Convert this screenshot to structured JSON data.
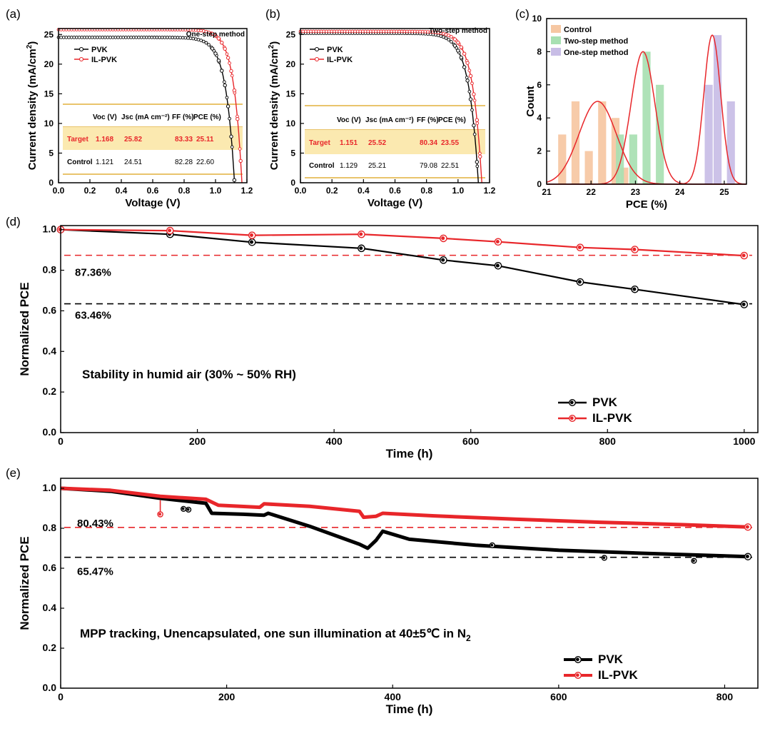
{
  "colors": {
    "black": "#000000",
    "red": "#e8262a",
    "table_line": "#e2b13c",
    "table_band": "#fbe9b0",
    "control_bar": "#f6c7a2",
    "two_step_bar": "#a8e0b2",
    "one_step_bar": "#c8bde6",
    "gauss_line": "#e8262a"
  },
  "chart_data": [
    {
      "id": "a",
      "panel_label": "(a)",
      "type": "line",
      "xlabel": "Voltage (V)",
      "ylabel_main": "Current density (mA/cm",
      "ylabel_sup": "2",
      "ylabel_tail": ")",
      "xlim": [
        0.0,
        1.2
      ],
      "ylim": [
        0,
        26
      ],
      "xticks": [
        "0.0",
        "0.2",
        "0.4",
        "0.6",
        "0.8",
        "1.0",
        "1.2"
      ],
      "yticks": [
        "0",
        "5",
        "10",
        "15",
        "20",
        "25"
      ],
      "annotation": "One-step method",
      "legend": [
        "PVK",
        "IL-PVK"
      ],
      "series": [
        {
          "name": "PVK",
          "jsc": 24.51,
          "voc": 1.121,
          "knee": 0.055
        },
        {
          "name": "IL-PVK",
          "jsc": 25.82,
          "voc": 1.168,
          "knee": 0.052
        }
      ],
      "table": {
        "headers": [
          "Voc (V)",
          "Jsc (mA cm⁻²)",
          "FF (%)",
          "PCE (%)"
        ],
        "rows": [
          {
            "label": "Target",
            "values": [
              "1.168",
              "25.82",
              "83.33",
              "25.11"
            ]
          },
          {
            "label": "Control",
            "values": [
              "1.121",
              "24.51",
              "82.28",
              "22.60"
            ]
          }
        ]
      }
    },
    {
      "id": "b",
      "panel_label": "(b)",
      "type": "line",
      "xlabel": "Voltage (V)",
      "ylabel_main": "Current density (mA/cm",
      "ylabel_sup": "2",
      "ylabel_tail": ")",
      "xlim": [
        0.0,
        1.2
      ],
      "ylim": [
        0,
        26
      ],
      "xticks": [
        "0.0",
        "0.2",
        "0.4",
        "0.6",
        "0.8",
        "1.0",
        "1.2"
      ],
      "yticks": [
        "0",
        "5",
        "10",
        "15",
        "20",
        "25"
      ],
      "annotation": "Two-step method",
      "legend": [
        "PVK",
        "IL-PVK"
      ],
      "series": [
        {
          "name": "PVK",
          "jsc": 25.21,
          "voc": 1.129,
          "knee": 0.06
        },
        {
          "name": "IL-PVK",
          "jsc": 25.52,
          "voc": 1.151,
          "knee": 0.058
        }
      ],
      "table": {
        "headers": [
          "Voc (V)",
          "Jsc (mA cm⁻²)",
          "FF (%)",
          "PCE (%)"
        ],
        "rows": [
          {
            "label": "Target",
            "values": [
              "1.151",
              "25.52",
              "80.34",
              "23.55"
            ]
          },
          {
            "label": "Control",
            "values": [
              "1.129",
              "25.21",
              "79.08",
              "22.51"
            ]
          }
        ]
      }
    },
    {
      "id": "c",
      "panel_label": "(c)",
      "type": "bar",
      "xlabel": "PCE (%)",
      "ylabel": "Count",
      "xlim": [
        21,
        25.5
      ],
      "ylim": [
        0,
        10
      ],
      "xticks": [
        "21",
        "22",
        "23",
        "24",
        "25"
      ],
      "yticks": [
        "0",
        "2",
        "4",
        "6",
        "8",
        "10"
      ],
      "legend": [
        "Control",
        "Two-step method",
        "One-step method"
      ],
      "bin_width": 0.18,
      "series": [
        {
          "name": "Control",
          "centers": [
            21.35,
            21.65,
            21.95,
            22.25,
            22.55,
            22.75
          ],
          "counts": [
            3,
            5,
            2,
            5,
            4,
            1
          ],
          "gauss": {
            "mu": 22.15,
            "sigma": 0.42,
            "peak": 5
          }
        },
        {
          "name": "Two-step method",
          "centers": [
            22.65,
            22.95,
            23.25,
            23.55
          ],
          "counts": [
            3,
            3,
            8,
            6
          ],
          "gauss": {
            "mu": 23.17,
            "sigma": 0.27,
            "peak": 8
          }
        },
        {
          "name": "One-step method",
          "centers": [
            24.65,
            24.85,
            25.15
          ],
          "counts": [
            6,
            9,
            5
          ],
          "gauss": {
            "mu": 24.73,
            "sigma": 0.19,
            "peak": 9
          }
        }
      ]
    },
    {
      "id": "d",
      "panel_label": "(d)",
      "type": "line",
      "xlabel": "Time (h)",
      "ylabel": "Normalized PCE",
      "xlim": [
        0,
        1020
      ],
      "ylim": [
        0,
        1.02
      ],
      "xticks": [
        "0",
        "200",
        "400",
        "600",
        "800",
        "1000"
      ],
      "yticks": [
        "0.0",
        "0.2",
        "0.4",
        "0.6",
        "0.8",
        "1.0"
      ],
      "annotation": "Stability in humid air  (30% ~ 50% RH)",
      "ref_red": {
        "value": 0.8736,
        "label": "87.36%"
      },
      "ref_black": {
        "value": 0.6346,
        "label": "63.46%"
      },
      "legend": [
        "PVK",
        "IL-PVK"
      ],
      "series": [
        {
          "name": "PVK",
          "x": [
            0,
            160,
            280,
            440,
            560,
            640,
            760,
            840,
            1000
          ],
          "y": [
            1.0,
            0.977,
            0.938,
            0.908,
            0.85,
            0.822,
            0.742,
            0.706,
            0.631
          ]
        },
        {
          "name": "IL-PVK",
          "x": [
            0,
            160,
            280,
            440,
            560,
            640,
            760,
            840,
            1000
          ],
          "y": [
            1.0,
            0.995,
            0.972,
            0.977,
            0.957,
            0.94,
            0.912,
            0.902,
            0.872
          ]
        }
      ]
    },
    {
      "id": "e",
      "panel_label": "(e)",
      "type": "line",
      "xlabel": "Time (h)",
      "ylabel": "Normalized PCE",
      "xlim": [
        0,
        840
      ],
      "ylim": [
        0,
        1.05
      ],
      "xticks": [
        "0",
        "200",
        "400",
        "600",
        "800"
      ],
      "yticks": [
        "0.0",
        "0.2",
        "0.4",
        "0.6",
        "0.8",
        "1.0"
      ],
      "annotation_main": "MPP tracking, Unencapsulated, one sun illumination at 40±5℃ in N",
      "annotation_sub": "2",
      "ref_red": {
        "value": 0.8043,
        "label": "80.43%"
      },
      "ref_black": {
        "value": 0.6547,
        "label": "65.47%"
      },
      "legend": [
        "PVK",
        "IL-PVK"
      ],
      "series": [
        {
          "name": "PVK",
          "x": [
            0,
            60,
            120,
            175,
            182,
            220,
            245,
            250,
            300,
            340,
            360,
            370,
            380,
            388,
            420,
            500,
            600,
            700,
            828
          ],
          "y": [
            1.0,
            0.985,
            0.95,
            0.925,
            0.875,
            0.87,
            0.865,
            0.875,
            0.81,
            0.75,
            0.72,
            0.7,
            0.74,
            0.785,
            0.745,
            0.715,
            0.69,
            0.675,
            0.658
          ]
        },
        {
          "name": "IL-PVK",
          "x": [
            0,
            60,
            120,
            175,
            190,
            240,
            245,
            300,
            360,
            365,
            380,
            388,
            450,
            550,
            650,
            750,
            828
          ],
          "y": [
            1.0,
            0.99,
            0.96,
            0.945,
            0.915,
            0.905,
            0.922,
            0.91,
            0.885,
            0.855,
            0.86,
            0.875,
            0.862,
            0.845,
            0.83,
            0.818,
            0.806
          ]
        }
      ]
    }
  ]
}
